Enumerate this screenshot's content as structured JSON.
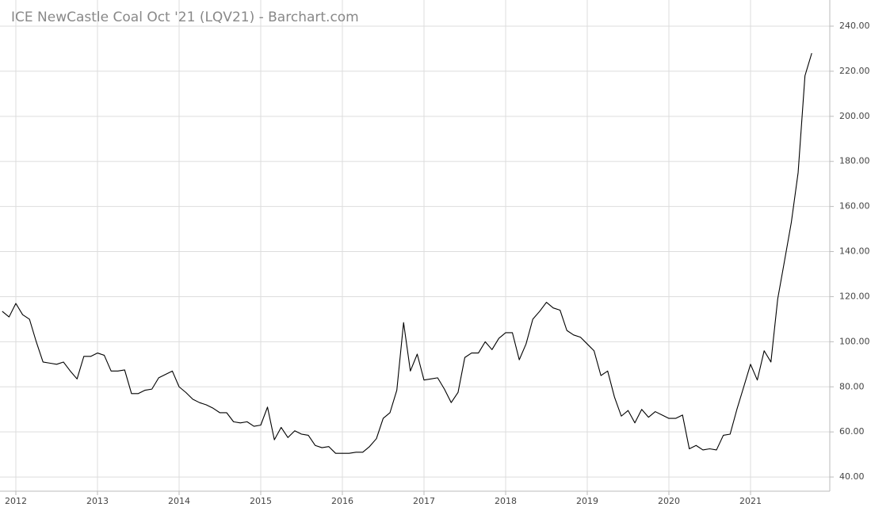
{
  "chart_data": {
    "type": "line",
    "title": "ICE NewCastle Coal Oct '21 (LQV21) - Barchart.com",
    "x": [
      2011.833,
      2011.917,
      2012,
      2012.083,
      2012.167,
      2012.25,
      2012.333,
      2012.417,
      2012.5,
      2012.583,
      2012.667,
      2012.75,
      2012.833,
      2012.917,
      2013,
      2013.083,
      2013.167,
      2013.25,
      2013.333,
      2013.417,
      2013.5,
      2013.583,
      2013.667,
      2013.75,
      2013.833,
      2013.917,
      2014,
      2014.083,
      2014.167,
      2014.25,
      2014.333,
      2014.417,
      2014.5,
      2014.583,
      2014.667,
      2014.75,
      2014.833,
      2014.917,
      2015,
      2015.083,
      2015.167,
      2015.25,
      2015.333,
      2015.417,
      2015.5,
      2015.583,
      2015.667,
      2015.75,
      2015.833,
      2015.917,
      2016,
      2016.083,
      2016.167,
      2016.25,
      2016.333,
      2016.417,
      2016.5,
      2016.583,
      2016.667,
      2016.75,
      2016.833,
      2016.917,
      2017,
      2017.083,
      2017.167,
      2017.25,
      2017.333,
      2017.417,
      2017.5,
      2017.583,
      2017.667,
      2017.75,
      2017.833,
      2017.917,
      2018,
      2018.083,
      2018.167,
      2018.25,
      2018.333,
      2018.417,
      2018.5,
      2018.583,
      2018.667,
      2018.75,
      2018.833,
      2018.917,
      2019,
      2019.083,
      2019.167,
      2019.25,
      2019.333,
      2019.417,
      2019.5,
      2019.583,
      2019.667,
      2019.75,
      2019.833,
      2019.917,
      2020,
      2020.083,
      2020.167,
      2020.25,
      2020.333,
      2020.417,
      2020.5,
      2020.583,
      2020.667,
      2020.75,
      2020.833,
      2020.917,
      2021,
      2021.083,
      2021.167,
      2021.25,
      2021.333,
      2021.417,
      2021.5,
      2021.583,
      2021.667,
      2021.75
    ],
    "series": [
      {
        "color": "#000000",
        "values": [
          113.5,
          111,
          117,
          112,
          110,
          100,
          91,
          90.5,
          90,
          91,
          87,
          83.5,
          93.5,
          93.5,
          95,
          94,
          87,
          87,
          87.5,
          77,
          77,
          78.5,
          79,
          84,
          85.5,
          87,
          80,
          77.5,
          74.5,
          73,
          72,
          70.5,
          68.5,
          68.5,
          64.5,
          64,
          64.5,
          62.5,
          63,
          71,
          56.5,
          62,
          57.5,
          60.5,
          59,
          58.5,
          54,
          53,
          53.5,
          50.5,
          50.5,
          50.5,
          51,
          51,
          53.5,
          57,
          66,
          68.5,
          78.5,
          108.5,
          87,
          94.5,
          83,
          83.5,
          84,
          79,
          73,
          77.5,
          93,
          95,
          95,
          100,
          96.5,
          101.5,
          104,
          104,
          92,
          99,
          110,
          113.5,
          117.5,
          115,
          114,
          105,
          103,
          102,
          99,
          96,
          85,
          87,
          75.5,
          67,
          69.5,
          64,
          70,
          66.5,
          69,
          67.5,
          66,
          66,
          67.5,
          52.5,
          54,
          52,
          52.5,
          52,
          58.5,
          59,
          70,
          80,
          90,
          83,
          96,
          91,
          119,
          136,
          153,
          175,
          218,
          228
        ]
      }
    ],
    "xlim": [
      2011.806,
      2021.971
    ],
    "xticks": [
      2012,
      2013,
      2014,
      2015,
      2016,
      2017,
      2018,
      2019,
      2020,
      2021
    ],
    "ylim": [
      33.7,
      251.6
    ],
    "yticks": [
      {
        "value": 40,
        "label": "40.00"
      },
      {
        "value": 60,
        "label": "60.00"
      },
      {
        "value": 80,
        "label": "80.00"
      },
      {
        "value": 100,
        "label": "100.00"
      },
      {
        "value": 120,
        "label": "120.00"
      },
      {
        "value": 140,
        "label": "140.00"
      },
      {
        "value": 160,
        "label": "160.00"
      },
      {
        "value": 180,
        "label": "180.00"
      },
      {
        "value": 200,
        "label": "200.00"
      },
      {
        "value": 220,
        "label": "220.00"
      },
      {
        "value": 240,
        "label": "240.00"
      }
    ],
    "grid": true
  }
}
